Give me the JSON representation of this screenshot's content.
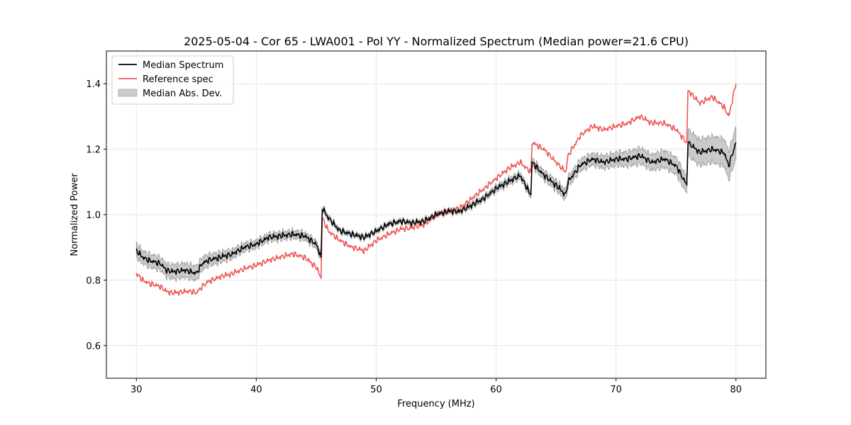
{
  "chart_data": {
    "type": "line",
    "title": "2025-05-04 - Cor 65 - LWA001 - Pol YY - Normalized Spectrum (Median power=21.6 CPU)",
    "xlabel": "Frequency (MHz)",
    "ylabel": "Normalized Power",
    "xlim": [
      27.5,
      82.5
    ],
    "ylim": [
      0.5,
      1.5
    ],
    "xticks": [
      30,
      40,
      50,
      60,
      70,
      80
    ],
    "yticks": [
      0.6,
      0.8,
      1.0,
      1.2,
      1.4
    ],
    "grid": true,
    "legend_position": "top-left",
    "series": [
      {
        "name": "Median Spectrum",
        "color": "#000000",
        "x": [
          30,
          30.5,
          31,
          31.5,
          32,
          32.5,
          33,
          34,
          34.5,
          35,
          35.5,
          36,
          37,
          38,
          39,
          40,
          41,
          42,
          43,
          44,
          45,
          45.4,
          45.5,
          46,
          47,
          48,
          49,
          50,
          51,
          52,
          53,
          54,
          55,
          56,
          57,
          58,
          59,
          60,
          61,
          62,
          62.9,
          63,
          64,
          65,
          65.8,
          66,
          67,
          68,
          69,
          70,
          71,
          72,
          73,
          74,
          75,
          75.9,
          76,
          77,
          78,
          79,
          79.4,
          80
        ],
        "y": [
          0.89,
          0.87,
          0.86,
          0.855,
          0.85,
          0.83,
          0.825,
          0.83,
          0.825,
          0.82,
          0.85,
          0.86,
          0.87,
          0.88,
          0.9,
          0.91,
          0.93,
          0.935,
          0.94,
          0.935,
          0.91,
          0.87,
          1.02,
          0.99,
          0.95,
          0.94,
          0.93,
          0.95,
          0.97,
          0.98,
          0.975,
          0.98,
          1.0,
          1.01,
          1.01,
          1.03,
          1.05,
          1.08,
          1.1,
          1.12,
          1.06,
          1.16,
          1.12,
          1.09,
          1.06,
          1.1,
          1.15,
          1.17,
          1.16,
          1.17,
          1.17,
          1.18,
          1.16,
          1.17,
          1.15,
          1.09,
          1.22,
          1.19,
          1.2,
          1.19,
          1.15,
          1.22
        ]
      },
      {
        "name": "Reference spec",
        "color": "#ee5555",
        "x": [
          30,
          30.5,
          31,
          31.5,
          32,
          32.5,
          33,
          34,
          34.5,
          35,
          35.5,
          36,
          37,
          38,
          39,
          40,
          41,
          42,
          43,
          44,
          45,
          45.4,
          45.5,
          46,
          47,
          48,
          49,
          50,
          51,
          52,
          53,
          54,
          55,
          56,
          57,
          58,
          59,
          60,
          61,
          62,
          62.9,
          63,
          64,
          65,
          65.8,
          66,
          67,
          68,
          69,
          70,
          71,
          72,
          73,
          74,
          75,
          75.9,
          76,
          77,
          78,
          79,
          79.4,
          80
        ],
        "y": [
          0.82,
          0.8,
          0.79,
          0.785,
          0.78,
          0.765,
          0.76,
          0.765,
          0.765,
          0.76,
          0.78,
          0.795,
          0.81,
          0.82,
          0.835,
          0.845,
          0.86,
          0.87,
          0.88,
          0.87,
          0.84,
          0.805,
          0.99,
          0.95,
          0.92,
          0.9,
          0.89,
          0.92,
          0.94,
          0.955,
          0.96,
          0.97,
          1.0,
          1.01,
          1.02,
          1.05,
          1.08,
          1.11,
          1.14,
          1.16,
          1.13,
          1.22,
          1.2,
          1.16,
          1.13,
          1.18,
          1.24,
          1.27,
          1.26,
          1.27,
          1.28,
          1.3,
          1.28,
          1.28,
          1.26,
          1.22,
          1.38,
          1.34,
          1.36,
          1.33,
          1.3,
          1.4
        ]
      }
    ],
    "band": {
      "name": "Median Abs. Dev.",
      "color": "#bbbbbb",
      "half_width": [
        0.022,
        0.02,
        0.02,
        0.02,
        0.02,
        0.02,
        0.022,
        0.022,
        0.022,
        0.022,
        0.02,
        0.018,
        0.016,
        0.014,
        0.013,
        0.012,
        0.012,
        0.012,
        0.012,
        0.012,
        0.012,
        0.01,
        0.008,
        0.007,
        0.006,
        0.006,
        0.006,
        0.006,
        0.006,
        0.006,
        0.006,
        0.006,
        0.006,
        0.006,
        0.006,
        0.008,
        0.008,
        0.009,
        0.01,
        0.01,
        0.01,
        0.012,
        0.014,
        0.016,
        0.016,
        0.016,
        0.018,
        0.018,
        0.02,
        0.02,
        0.022,
        0.024,
        0.024,
        0.026,
        0.026,
        0.026,
        0.04,
        0.04,
        0.04,
        0.042,
        0.044,
        0.05
      ]
    }
  }
}
